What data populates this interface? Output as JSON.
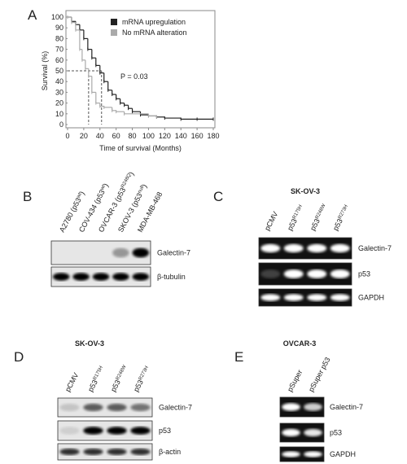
{
  "chart_data": {
    "type": "step",
    "panel": "A",
    "ylabel": "Survival (%)",
    "xlabel": "Time of survival (Months)",
    "annotation": "P = 0.03",
    "xlim": [
      0,
      180
    ],
    "xticks": [
      0,
      20,
      40,
      60,
      80,
      100,
      120,
      140,
      160,
      180
    ],
    "ylim": [
      0,
      100
    ],
    "yticks": [
      0,
      10,
      20,
      30,
      40,
      50,
      60,
      70,
      80,
      90,
      100
    ],
    "legend": "top-right",
    "reference_y": 50,
    "reference_x": [
      26,
      42
    ],
    "series": [
      {
        "name": "mRNA upregulation",
        "color": "#222222",
        "x": [
          0,
          5,
          10,
          15,
          20,
          25,
          30,
          35,
          40,
          45,
          50,
          55,
          60,
          65,
          70,
          75,
          80,
          90,
          100,
          110,
          120,
          140,
          160,
          180
        ],
        "values": [
          100,
          96,
          93,
          88,
          80,
          70,
          62,
          55,
          48,
          40,
          32,
          28,
          24,
          20,
          18,
          15,
          12,
          9,
          8,
          7,
          6,
          5,
          5,
          5
        ]
      },
      {
        "name": "No mRNA alteration",
        "color": "#aaaaaa",
        "x": [
          0,
          5,
          10,
          15,
          18,
          22,
          26,
          30,
          35,
          40,
          45,
          55,
          60,
          70,
          100,
          110
        ],
        "values": [
          100,
          95,
          88,
          70,
          60,
          52,
          45,
          30,
          20,
          17,
          16,
          13,
          12,
          10,
          8,
          7
        ]
      }
    ]
  },
  "panels": [
    {
      "letter": "B",
      "kind": "blot",
      "lanes": [
        {
          "main": "A2780 (p53",
          "sup": "wt",
          "end": ")"
        },
        {
          "main": "COV-434 (p53",
          "sup": "wt",
          "end": ")"
        },
        {
          "main": "OVCAR-3 (p53",
          "sup": "R248Q",
          "end": ")"
        },
        {
          "main": "SKOV-3 (p53",
          "sup": "null",
          "end": ")"
        },
        {
          "main": "MDA-MB-468"
        }
      ],
      "rows": [
        "Galectin-7",
        "β-tubulin"
      ]
    },
    {
      "letter": "C",
      "kind": "gel",
      "title": "SK-OV-3",
      "lanes": [
        {
          "main": "pCMV"
        },
        {
          "main": "p53",
          "sup": "R175H"
        },
        {
          "main": "p53",
          "sup": "R248W"
        },
        {
          "main": "p53",
          "sup": "R273H"
        }
      ],
      "rows": [
        "Galectin-7",
        "p53",
        "GAPDH"
      ]
    },
    {
      "letter": "D",
      "kind": "blot",
      "title": "SK-OV-3",
      "lanes": [
        {
          "main": "pCMV"
        },
        {
          "main": "p53",
          "sup": "R175H"
        },
        {
          "main": "p53",
          "sup": "R248W"
        },
        {
          "main": "p53",
          "sup": "R273H"
        }
      ],
      "rows": [
        "Galectin-7",
        "p53",
        "β-actin"
      ]
    },
    {
      "letter": "E",
      "kind": "gel",
      "title": "OVCAR-3",
      "lanes": [
        {
          "main": "pSuper"
        },
        {
          "main": "pSuper p53"
        }
      ],
      "rows": [
        "Galectin-7",
        "p53",
        "GAPDH"
      ]
    }
  ]
}
